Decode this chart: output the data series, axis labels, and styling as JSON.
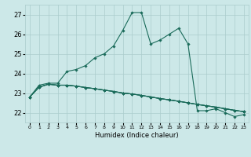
{
  "title": "",
  "xlabel": "Humidex (Indice chaleur)",
  "ylabel": "",
  "bg_color": "#cce8e8",
  "grid_color": "#aacccc",
  "line_color": "#1a6b5a",
  "xlim": [
    -0.5,
    23.5
  ],
  "ylim": [
    21.5,
    27.5
  ],
  "yticks": [
    22,
    23,
    24,
    25,
    26,
    27
  ],
  "xtick_labels": [
    "0",
    "1",
    "2",
    "3",
    "4",
    "5",
    "6",
    "7",
    "8",
    "9",
    "10",
    "11",
    "12",
    "13",
    "14",
    "15",
    "16",
    "17",
    "18",
    "19",
    "20",
    "21",
    "22",
    "23"
  ],
  "line1": [
    22.8,
    23.4,
    23.5,
    23.5,
    24.1,
    24.2,
    24.4,
    24.8,
    25.0,
    25.4,
    26.2,
    27.1,
    27.1,
    25.5,
    25.7,
    26.0,
    26.3,
    25.5,
    22.1,
    22.1,
    22.2,
    22.0,
    21.8,
    21.9
  ],
  "line2": [
    22.8,
    23.3,
    23.45,
    23.4,
    23.4,
    23.35,
    23.28,
    23.22,
    23.15,
    23.08,
    23.0,
    22.95,
    22.88,
    22.8,
    22.72,
    22.65,
    22.58,
    22.5,
    22.42,
    22.35,
    22.28,
    22.2,
    22.12,
    22.05
  ],
  "line3": [
    22.8,
    23.3,
    23.45,
    23.4,
    23.4,
    23.35,
    23.28,
    23.22,
    23.15,
    23.08,
    23.0,
    22.95,
    22.88,
    22.8,
    22.72,
    22.65,
    22.58,
    22.5,
    22.42,
    22.35,
    22.28,
    22.2,
    22.12,
    22.05
  ],
  "line4": [
    22.8,
    23.3,
    23.45,
    23.4,
    23.4,
    23.35,
    23.28,
    23.22,
    23.15,
    23.08,
    23.0,
    22.95,
    22.88,
    22.8,
    22.72,
    22.65,
    22.58,
    22.5,
    22.42,
    22.35,
    22.28,
    22.2,
    22.12,
    22.05
  ]
}
